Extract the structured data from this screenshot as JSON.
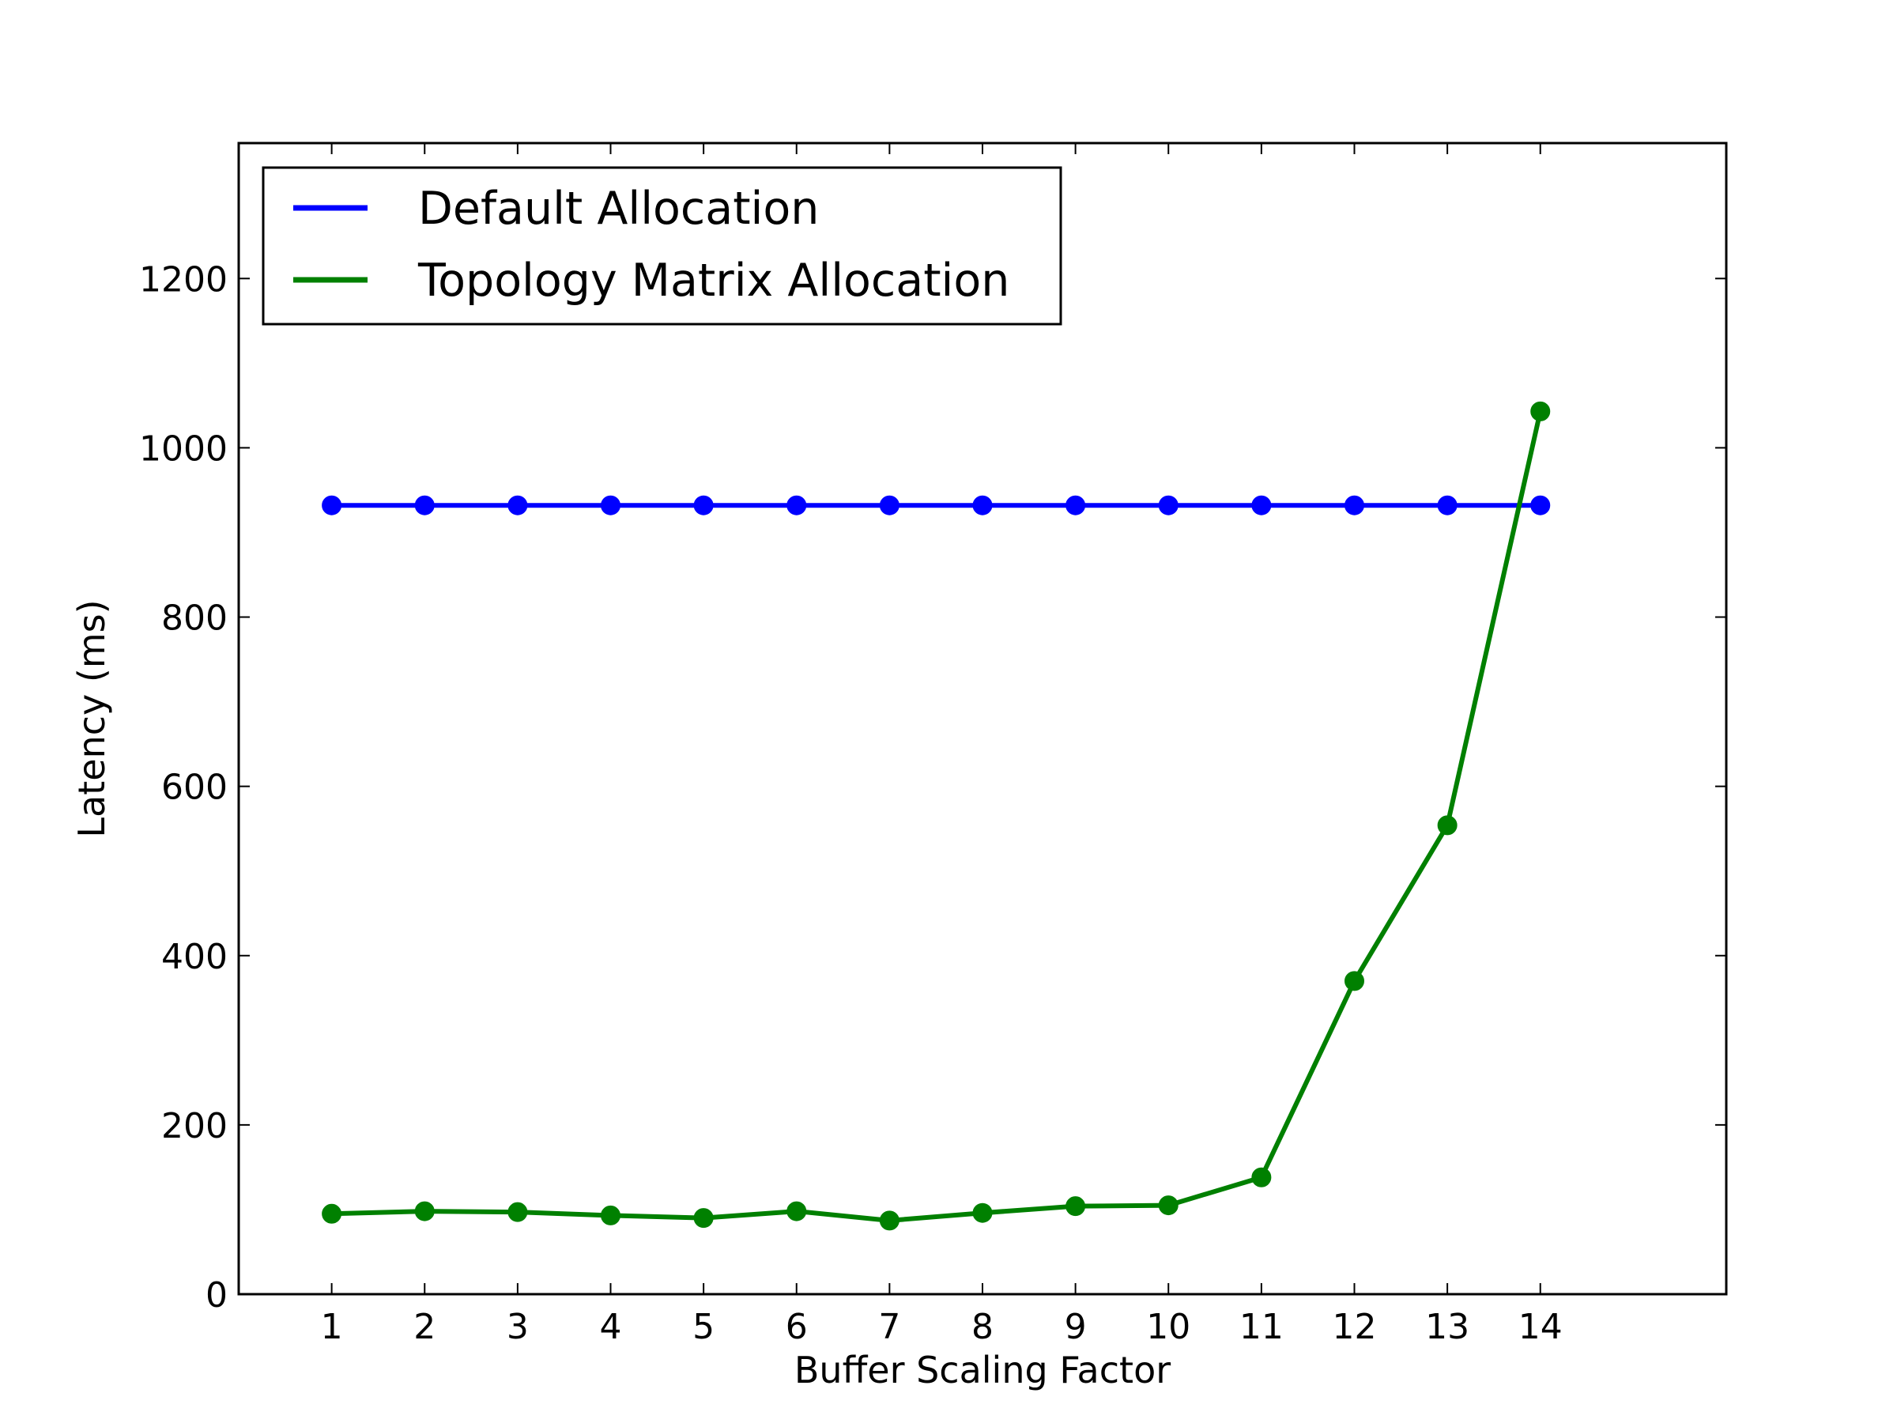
{
  "chart_data": {
    "type": "line",
    "title": "",
    "xlabel": "Buffer Scaling Factor",
    "ylabel": "Latency (ms)",
    "x": [
      1,
      2,
      3,
      4,
      5,
      6,
      7,
      8,
      9,
      10,
      11,
      12,
      13,
      14
    ],
    "xlim": [
      0,
      16
    ],
    "ylim": [
      0,
      1360
    ],
    "x_ticks": [
      "1",
      "2",
      "3",
      "4",
      "5",
      "6",
      "7",
      "8",
      "9",
      "10",
      "11",
      "12",
      "13",
      "14"
    ],
    "y_ticks": [
      "0",
      "200",
      "400",
      "600",
      "800",
      "1000",
      "1200"
    ],
    "grid": false,
    "legend_position": "top-left",
    "series": [
      {
        "name": "Default Allocation",
        "color": "#0000ff",
        "marker": "circle",
        "values": [
          932,
          932,
          932,
          932,
          932,
          932,
          932,
          932,
          932,
          932,
          932,
          932,
          932,
          932
        ]
      },
      {
        "name": "Topology Matrix Allocation",
        "color": "#008000",
        "marker": "circle",
        "values": [
          95,
          98,
          97,
          93,
          90,
          98,
          87,
          96,
          104,
          105,
          138,
          370,
          554,
          1043
        ]
      }
    ]
  }
}
